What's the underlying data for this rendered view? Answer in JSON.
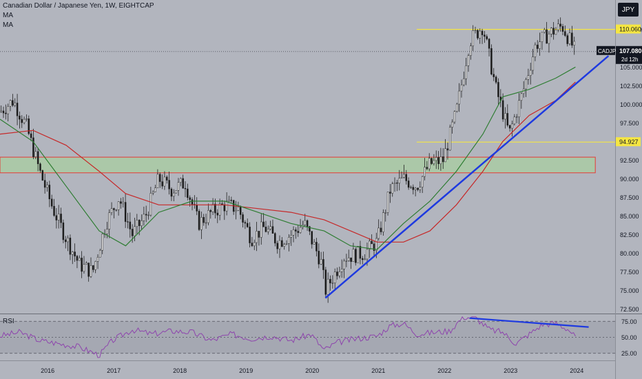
{
  "header": {
    "title": "Canadian Dollar / Japanese Yen, 1W, EIGHTCAP",
    "ma1_label": "MA",
    "ma2_label": "MA"
  },
  "currency_button": "JPY",
  "rsi_label": "RSI",
  "price_tag": {
    "symbol": "CADJPY",
    "price": "107.080",
    "countdown": "2d 12h"
  },
  "colors": {
    "background": "#b2b5be",
    "ma_fast": "#2e7d32",
    "ma_slow": "#c62828",
    "trendline": "#1e3ae0",
    "level_line": "#f5e642",
    "zone_fill": "#a8cfa0",
    "zone_border": "#e53935",
    "rsi_line": "#8e44ad",
    "candle_up": "#3a3a3a",
    "candle_down": "#1a1a1a"
  },
  "chart_data": [
    {
      "type": "line",
      "title": "Canadian Dollar / Japanese Yen, 1W, EIGHTCAP",
      "x_unit": "year",
      "xlim": [
        2015.3,
        2024.6
      ],
      "ylim": [
        72.0,
        114.0
      ],
      "x_ticks": [
        "2016",
        "2017",
        "2018",
        "2019",
        "2020",
        "2021",
        "2022",
        "2023",
        "2024"
      ],
      "y_ticks": [
        "72.500",
        "75.000",
        "77.500",
        "80.000",
        "82.500",
        "85.000",
        "87.500",
        "90.000",
        "92.500",
        "95.000",
        "97.500",
        "100.000",
        "102.500",
        "105.000",
        "110.000"
      ],
      "series": [
        {
          "name": "CADJPY",
          "x": [
            2015.3,
            2015.5,
            2015.7,
            2015.9,
            2016.1,
            2016.3,
            2016.5,
            2016.7,
            2016.9,
            2017.1,
            2017.3,
            2017.5,
            2017.7,
            2017.9,
            2018.1,
            2018.3,
            2018.5,
            2018.7,
            2018.9,
            2019.1,
            2019.3,
            2019.5,
            2019.7,
            2019.9,
            2020.15,
            2020.22,
            2020.5,
            2020.8,
            2021.0,
            2021.2,
            2021.4,
            2021.6,
            2021.8,
            2022.0,
            2022.2,
            2022.4,
            2022.6,
            2022.8,
            2023.0,
            2023.2,
            2023.4,
            2023.6,
            2023.8,
            2024.0
          ],
          "y": [
            99.0,
            100.5,
            97.0,
            91.0,
            86.0,
            82.0,
            78.5,
            77.5,
            84.0,
            87.5,
            82.5,
            85.0,
            90.0,
            88.5,
            89.5,
            84.0,
            85.5,
            86.5,
            86.0,
            82.0,
            83.5,
            81.5,
            82.5,
            84.0,
            79.0,
            75.0,
            79.5,
            80.0,
            81.5,
            88.5,
            90.0,
            89.0,
            92.0,
            92.5,
            99.0,
            108.5,
            110.5,
            102.0,
            96.0,
            101.5,
            108.0,
            109.5,
            110.5,
            107.08
          ]
        },
        {
          "name": "MA (fast)",
          "x": [
            2015.3,
            2015.8,
            2016.3,
            2016.8,
            2017.2,
            2017.7,
            2018.2,
            2018.7,
            2019.2,
            2019.7,
            2020.2,
            2020.6,
            2021.0,
            2021.4,
            2021.8,
            2022.2,
            2022.6,
            2022.9,
            2023.3,
            2023.7,
            2024.0
          ],
          "y": [
            98.0,
            95.0,
            89.0,
            83.0,
            81.0,
            85.5,
            87.0,
            87.0,
            85.5,
            84.0,
            83.0,
            81.0,
            80.5,
            84.0,
            87.0,
            91.0,
            96.0,
            101.0,
            102.0,
            103.5,
            105.0
          ]
        },
        {
          "name": "MA (slow)",
          "x": [
            2015.3,
            2015.8,
            2016.3,
            2016.8,
            2017.2,
            2017.7,
            2018.2,
            2018.7,
            2019.2,
            2019.7,
            2020.2,
            2020.6,
            2021.0,
            2021.4,
            2021.8,
            2022.2,
            2022.6,
            2022.9,
            2023.3,
            2023.7,
            2024.0
          ],
          "y": [
            96.0,
            96.5,
            94.5,
            91.0,
            88.0,
            86.5,
            86.5,
            86.5,
            86.0,
            85.5,
            84.5,
            83.0,
            81.5,
            81.5,
            83.0,
            86.5,
            91.0,
            95.0,
            98.5,
            100.5,
            103.0
          ]
        },
        {
          "name": "Trendline",
          "x": [
            2020.22,
            2024.5
          ],
          "y": [
            74.0,
            106.5
          ]
        }
      ],
      "annotations": {
        "horizontal_levels": [
          {
            "label": "110.060",
            "y": 110.06,
            "x_start": 2021.6,
            "x_end": 2024.6
          },
          {
            "label": "94.927",
            "y": 94.927,
            "x_start": 2021.6,
            "x_end": 2024.6
          }
        ],
        "zone": {
          "y_low": 90.8,
          "y_high": 92.9,
          "x_start": 2015.3,
          "x_end": 2024.3
        },
        "current_price_label": "107.080"
      },
      "grid": false,
      "legend": "top-left"
    },
    {
      "type": "line",
      "title": "RSI",
      "ylim": [
        15,
        85
      ],
      "y_ticks": [
        "25.00",
        "50.00",
        "75.00"
      ],
      "series": [
        {
          "name": "RSI",
          "x": [
            2015.3,
            2015.6,
            2015.9,
            2016.2,
            2016.5,
            2016.8,
            2017.0,
            2017.3,
            2017.6,
            2017.9,
            2018.2,
            2018.5,
            2018.8,
            2019.1,
            2019.4,
            2019.7,
            2020.0,
            2020.2,
            2020.4,
            2020.7,
            2021.0,
            2021.2,
            2021.4,
            2021.6,
            2021.9,
            2022.1,
            2022.3,
            2022.5,
            2022.7,
            2022.9,
            2023.1,
            2023.3,
            2023.5,
            2023.7,
            2023.9,
            2024.0
          ],
          "y": [
            52,
            58,
            45,
            40,
            35,
            22,
            45,
            62,
            55,
            60,
            58,
            45,
            55,
            48,
            52,
            45,
            55,
            30,
            42,
            48,
            52,
            68,
            72,
            55,
            58,
            60,
            82,
            80,
            62,
            58,
            40,
            55,
            70,
            72,
            62,
            50
          ]
        },
        {
          "name": "Divergence line",
          "x": [
            2022.4,
            2024.2
          ],
          "y": [
            80.0,
            66.0
          ]
        }
      ],
      "annotations": {
        "levels": [
          25,
          50,
          75
        ]
      },
      "legend": "top-left"
    }
  ]
}
